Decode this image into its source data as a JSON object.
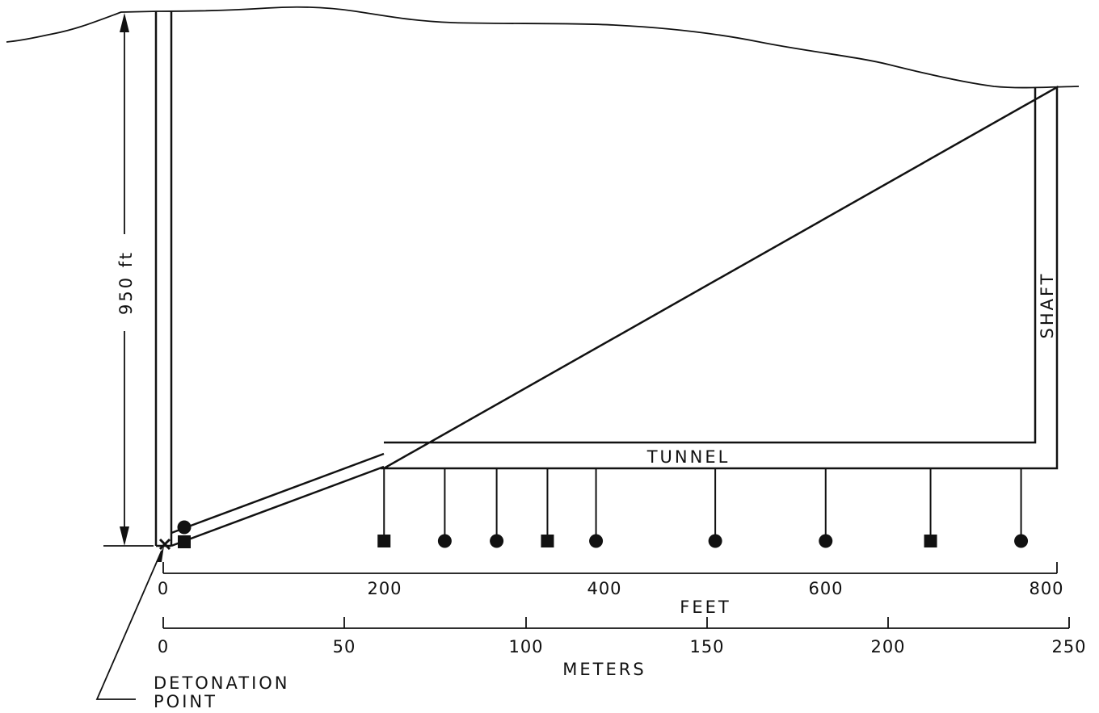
{
  "diagram": {
    "depth_label": "950 ft",
    "shaft_label": "SHAFT",
    "tunnel_label": "TUNNEL",
    "detonation_label_line1": "DETONATION",
    "detonation_label_line2": "POINT",
    "feet_axis": {
      "title": "FEET",
      "ticks": [
        "0",
        "200",
        "400",
        "600",
        "800"
      ]
    },
    "meters_axis": {
      "title": "METERS",
      "ticks": [
        "0",
        "50",
        "100",
        "150",
        "200",
        "250"
      ]
    },
    "gauges": [
      {
        "shape": "circle",
        "position_ft": 20,
        "location": "drift"
      },
      {
        "shape": "square",
        "position_ft": 20,
        "location": "drift"
      },
      {
        "shape": "square",
        "position_ft": 200
      },
      {
        "shape": "circle",
        "position_ft": 255
      },
      {
        "shape": "circle",
        "position_ft": 302
      },
      {
        "shape": "square",
        "position_ft": 348
      },
      {
        "shape": "circle",
        "position_ft": 392
      },
      {
        "shape": "circle",
        "position_ft": 500
      },
      {
        "shape": "circle",
        "position_ft": 600
      },
      {
        "shape": "square",
        "position_ft": 695
      },
      {
        "shape": "circle",
        "position_ft": 777
      }
    ]
  }
}
